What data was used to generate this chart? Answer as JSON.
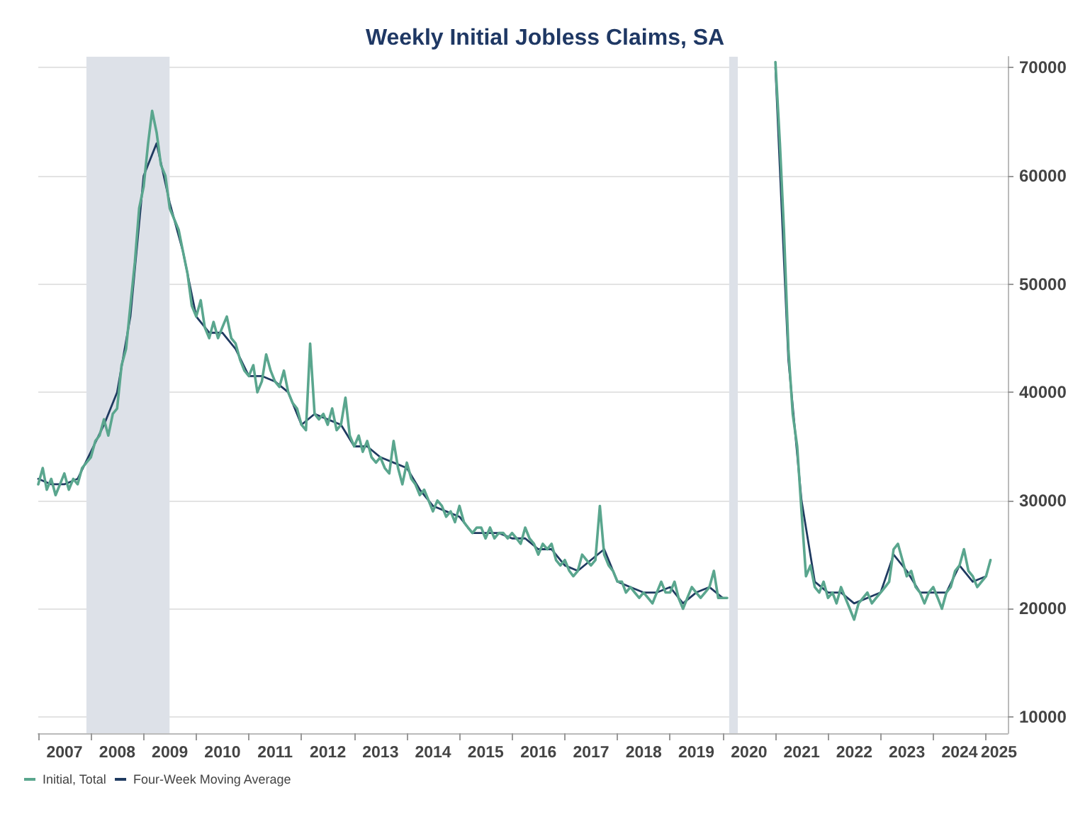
{
  "chart_data": {
    "type": "line",
    "title": "Weekly Initial Jobless Claims, SA",
    "x": [
      "2007-01-01",
      "2007-02-01",
      "2007-03-01",
      "2007-04-01",
      "2007-05-01",
      "2007-06-01",
      "2007-07-01",
      "2007-08-01",
      "2007-09-01",
      "2007-10-01",
      "2007-11-01",
      "2007-12-01",
      "2008-01-01",
      "2008-02-01",
      "2008-03-01",
      "2008-04-01",
      "2008-05-01",
      "2008-06-01",
      "2008-07-01",
      "2008-08-01",
      "2008-09-01",
      "2008-10-01",
      "2008-11-01",
      "2008-12-01",
      "2009-01-01",
      "2009-02-01",
      "2009-03-01",
      "2009-04-01",
      "2009-05-01",
      "2009-06-01",
      "2009-07-01",
      "2009-08-01",
      "2009-09-01",
      "2009-10-01",
      "2009-11-01",
      "2009-12-01",
      "2010-01-01",
      "2010-02-01",
      "2010-03-01",
      "2010-04-01",
      "2010-05-01",
      "2010-06-01",
      "2010-07-01",
      "2010-08-01",
      "2010-09-01",
      "2010-10-01",
      "2010-11-01",
      "2010-12-01",
      "2011-01-01",
      "2011-02-01",
      "2011-03-01",
      "2011-04-01",
      "2011-05-01",
      "2011-06-01",
      "2011-07-01",
      "2011-08-01",
      "2011-09-01",
      "2011-10-01",
      "2011-11-01",
      "2011-12-01",
      "2012-01-01",
      "2012-02-01",
      "2012-03-01",
      "2012-04-01",
      "2012-05-01",
      "2012-06-01",
      "2012-07-01",
      "2012-08-01",
      "2012-09-01",
      "2012-10-01",
      "2012-11-01",
      "2012-12-01",
      "2013-01-01",
      "2013-02-01",
      "2013-03-01",
      "2013-04-01",
      "2013-05-01",
      "2013-06-01",
      "2013-07-01",
      "2013-08-01",
      "2013-09-01",
      "2013-10-01",
      "2013-11-01",
      "2013-12-01",
      "2014-01-01",
      "2014-02-01",
      "2014-03-01",
      "2014-04-01",
      "2014-05-01",
      "2014-06-01",
      "2014-07-01",
      "2014-08-01",
      "2014-09-01",
      "2014-10-01",
      "2014-11-01",
      "2014-12-01",
      "2015-01-01",
      "2015-02-01",
      "2015-03-01",
      "2015-04-01",
      "2015-05-01",
      "2015-06-01",
      "2015-07-01",
      "2015-08-01",
      "2015-09-01",
      "2015-10-01",
      "2015-11-01",
      "2015-12-01",
      "2016-01-01",
      "2016-02-01",
      "2016-03-01",
      "2016-04-01",
      "2016-05-01",
      "2016-06-01",
      "2016-07-01",
      "2016-08-01",
      "2016-09-01",
      "2016-10-01",
      "2016-11-01",
      "2016-12-01",
      "2017-01-01",
      "2017-02-01",
      "2017-03-01",
      "2017-04-01",
      "2017-05-01",
      "2017-06-01",
      "2017-07-01",
      "2017-08-01",
      "2017-09-01",
      "2017-10-01",
      "2017-11-01",
      "2017-12-01",
      "2018-01-01",
      "2018-02-01",
      "2018-03-01",
      "2018-04-01",
      "2018-05-01",
      "2018-06-01",
      "2018-07-01",
      "2018-08-01",
      "2018-09-01",
      "2018-10-01",
      "2018-11-01",
      "2018-12-01",
      "2019-01-01",
      "2019-02-01",
      "2019-03-01",
      "2019-04-01",
      "2019-05-01",
      "2019-06-01",
      "2019-07-01",
      "2019-08-01",
      "2019-09-01",
      "2019-10-01",
      "2019-11-01",
      "2019-12-01",
      "2020-01-01",
      "2020-02-01",
      "2020-03-01",
      "2020-04-01",
      "2020-05-01",
      "2020-06-01",
      "2020-07-01",
      "2020-08-01",
      "2020-09-01",
      "2020-10-01",
      "2020-11-01",
      "2020-12-01",
      "2021-01-01",
      "2021-02-01",
      "2021-03-01",
      "2021-04-01",
      "2021-05-01",
      "2021-06-01",
      "2021-07-01",
      "2021-08-01",
      "2021-09-01",
      "2021-10-01",
      "2021-11-01",
      "2021-12-01",
      "2022-01-01",
      "2022-02-01",
      "2022-03-01",
      "2022-04-01",
      "2022-05-01",
      "2022-06-01",
      "2022-07-01",
      "2022-08-01",
      "2022-09-01",
      "2022-10-01",
      "2022-11-01",
      "2022-12-01",
      "2023-01-01",
      "2023-02-01",
      "2023-03-01",
      "2023-04-01",
      "2023-05-01",
      "2023-06-01",
      "2023-07-01",
      "2023-08-01",
      "2023-09-01",
      "2023-10-01",
      "2023-11-01",
      "2023-12-01",
      "2024-01-01",
      "2024-02-01",
      "2024-03-01",
      "2024-04-01",
      "2024-05-01",
      "2024-06-01",
      "2024-07-01",
      "2024-08-01",
      "2024-09-01",
      "2024-10-01",
      "2024-11-01",
      "2024-12-01",
      "2025-01-01",
      "2025-02-01"
    ],
    "series": [
      {
        "name": "Initial, Total",
        "color": "#5aa68e",
        "values": [
          31500,
          33000,
          31000,
          32000,
          30500,
          31500,
          32500,
          31000,
          32000,
          31500,
          33000,
          33500,
          34000,
          35500,
          36000,
          37500,
          36000,
          38000,
          38500,
          42500,
          44000,
          48000,
          52000,
          57000,
          59000,
          63000,
          66000,
          64000,
          61000,
          60000,
          57000,
          56000,
          55000,
          53000,
          51000,
          48000,
          47000,
          48500,
          46000,
          45000,
          46500,
          45000,
          46000,
          47000,
          45000,
          44500,
          43000,
          42000,
          41500,
          42500,
          40000,
          41000,
          43500,
          42000,
          41000,
          40500,
          42000,
          40000,
          39000,
          38500,
          37000,
          36500,
          44500,
          38000,
          37500,
          38000,
          37000,
          38500,
          36500,
          37000,
          39500,
          36000,
          35000,
          36000,
          34500,
          35500,
          34000,
          33500,
          34000,
          33000,
          32500,
          35500,
          33000,
          31500,
          33500,
          32000,
          31500,
          30500,
          31000,
          30000,
          29000,
          30000,
          29500,
          28500,
          29000,
          28000,
          29500,
          28000,
          27500,
          27000,
          27500,
          27500,
          26500,
          27500,
          26500,
          27000,
          27000,
          26500,
          27000,
          26500,
          26000,
          27500,
          26500,
          26000,
          25000,
          26000,
          25500,
          26000,
          24500,
          24000,
          24500,
          23500,
          23000,
          23500,
          25000,
          24500,
          24000,
          24500,
          29500,
          25000,
          24000,
          23500,
          22500,
          22500,
          21500,
          22000,
          21500,
          21000,
          21500,
          21000,
          20500,
          21500,
          22500,
          21500,
          21500,
          22500,
          21000,
          20000,
          21000,
          22000,
          21500,
          21000,
          21500,
          22000,
          23500,
          21000,
          21000,
          21000,
          null,
          null,
          null,
          null,
          null,
          null,
          null,
          null,
          null,
          null,
          70500,
          63000,
          55000,
          44000,
          38000,
          35000,
          29000,
          23000,
          24000,
          22000,
          21500,
          22500,
          21000,
          21500,
          20500,
          22000,
          21000,
          20000,
          19000,
          20500,
          21000,
          21500,
          20500,
          21000,
          21500,
          22000,
          22500,
          25500,
          26000,
          24500,
          23000,
          23500,
          22000,
          21500,
          20500,
          21500,
          22000,
          21000,
          20000,
          21500,
          22000,
          23500,
          24000,
          25500,
          23500,
          23000,
          22000,
          22500,
          23000,
          24500
        ]
      },
      {
        "name": "Four-Week Moving Average",
        "color": "#1f3a60",
        "x": [
          "2007-01-01",
          "2007-04-01",
          "2007-07-01",
          "2007-10-01",
          "2008-01-01",
          "2008-04-01",
          "2008-07-01",
          "2008-10-01",
          "2009-01-01",
          "2009-04-01",
          "2009-07-01",
          "2009-10-01",
          "2010-01-01",
          "2010-04-01",
          "2010-07-01",
          "2010-10-01",
          "2011-01-01",
          "2011-04-01",
          "2011-07-01",
          "2011-10-01",
          "2012-01-01",
          "2012-04-01",
          "2012-07-01",
          "2012-10-01",
          "2013-01-01",
          "2013-04-01",
          "2013-07-01",
          "2013-10-01",
          "2014-01-01",
          "2014-04-01",
          "2014-07-01",
          "2014-10-01",
          "2015-01-01",
          "2015-04-01",
          "2015-07-01",
          "2015-10-01",
          "2016-01-01",
          "2016-04-01",
          "2016-07-01",
          "2016-10-01",
          "2017-01-01",
          "2017-04-01",
          "2017-07-01",
          "2017-10-01",
          "2018-01-01",
          "2018-04-01",
          "2018-07-01",
          "2018-10-01",
          "2019-01-01",
          "2019-04-01",
          "2019-07-01",
          "2019-10-01",
          "2020-01-01",
          "2020-04-01",
          "2020-07-01",
          "2020-10-01",
          "2021-01-01",
          "2021-04-01",
          "2021-07-01",
          "2021-10-01",
          "2022-01-01",
          "2022-04-01",
          "2022-07-01",
          "2022-10-01",
          "2023-01-01",
          "2023-04-01",
          "2023-07-01",
          "2023-10-01",
          "2024-01-01",
          "2024-04-01",
          "2024-07-01",
          "2024-10-01",
          "2025-01-01"
        ],
        "values": [
          32000,
          31500,
          31500,
          32000,
          34500,
          37000,
          40000,
          47000,
          60000,
          63000,
          57500,
          53000,
          47000,
          45500,
          45500,
          44000,
          41500,
          41500,
          41000,
          40000,
          37000,
          38000,
          37500,
          37000,
          35000,
          35000,
          34000,
          33500,
          33000,
          31000,
          29500,
          29000,
          28500,
          27000,
          27000,
          27000,
          26500,
          26500,
          25500,
          25500,
          24000,
          23500,
          24500,
          25500,
          22500,
          22000,
          21500,
          21500,
          22000,
          20500,
          21500,
          22000,
          21000,
          null,
          null,
          null,
          70000,
          43000,
          30000,
          22500,
          21500,
          21500,
          20500,
          21000,
          21500,
          25000,
          23500,
          21500,
          21500,
          21500,
          24000,
          22500,
          23000
        ]
      }
    ],
    "xlim": [
      "2007-01-01",
      "2025-06-01"
    ],
    "xticks": [
      {
        "value": "2007-01-01",
        "label": null
      },
      {
        "value": "2007-07-02",
        "label": "2007"
      },
      {
        "value": "2008-01-01",
        "label": null
      },
      {
        "value": "2008-07-02",
        "label": "2008"
      },
      {
        "value": "2009-01-01",
        "label": null
      },
      {
        "value": "2009-07-02",
        "label": "2009"
      },
      {
        "value": "2010-01-01",
        "label": null
      },
      {
        "value": "2010-07-02",
        "label": "2010"
      },
      {
        "value": "2011-01-01",
        "label": null
      },
      {
        "value": "2011-07-02",
        "label": "2011"
      },
      {
        "value": "2012-01-01",
        "label": null
      },
      {
        "value": "2012-07-02",
        "label": "2012"
      },
      {
        "value": "2013-01-01",
        "label": null
      },
      {
        "value": "2013-07-02",
        "label": "2013"
      },
      {
        "value": "2014-01-01",
        "label": null
      },
      {
        "value": "2014-07-02",
        "label": "2014"
      },
      {
        "value": "2015-01-01",
        "label": null
      },
      {
        "value": "2015-07-02",
        "label": "2015"
      },
      {
        "value": "2016-01-01",
        "label": null
      },
      {
        "value": "2016-07-02",
        "label": "2016"
      },
      {
        "value": "2017-01-01",
        "label": null
      },
      {
        "value": "2017-07-02",
        "label": "2017"
      },
      {
        "value": "2018-01-01",
        "label": null
      },
      {
        "value": "2018-07-02",
        "label": "2018"
      },
      {
        "value": "2019-01-01",
        "label": null
      },
      {
        "value": "2019-07-02",
        "label": "2019"
      },
      {
        "value": "2020-01-01",
        "label": null
      },
      {
        "value": "2020-07-02",
        "label": "2020"
      },
      {
        "value": "2021-01-01",
        "label": null
      },
      {
        "value": "2021-07-02",
        "label": "2021"
      },
      {
        "value": "2022-01-01",
        "label": null
      },
      {
        "value": "2022-07-02",
        "label": "2022"
      },
      {
        "value": "2023-01-01",
        "label": null
      },
      {
        "value": "2023-07-02",
        "label": "2023"
      },
      {
        "value": "2024-01-01",
        "label": null
      },
      {
        "value": "2024-07-02",
        "label": "2024"
      },
      {
        "value": "2025-01-01",
        "label": null
      },
      {
        "value": "2025-04-01",
        "label": "2025"
      }
    ],
    "ylim": [
      8500,
      71000
    ],
    "yticks": [
      10000,
      20000,
      30000,
      40000,
      50000,
      60000,
      70000
    ],
    "bands": [
      {
        "axis": "x",
        "from": "2007-12-01",
        "to": "2009-06-30",
        "color": "#dde1e8"
      },
      {
        "axis": "x",
        "from": "2020-02-15",
        "to": "2020-04-15",
        "color": "#dde1e8"
      }
    ],
    "grid": "y",
    "legend": "bottom left",
    "marker": "none",
    "line_style": "solid"
  }
}
